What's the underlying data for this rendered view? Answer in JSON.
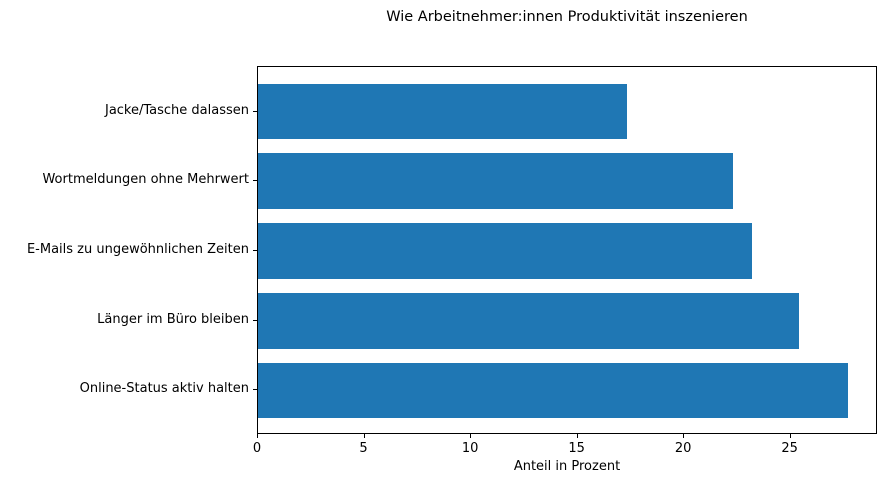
{
  "chart_data": {
    "type": "bar",
    "orientation": "horizontal",
    "title": "Wie Arbeitnehmer:innen Produktivität inszenieren",
    "xlabel": "Anteil in Prozent",
    "ylabel": "",
    "categories": [
      "Jacke/Tasche dalassen",
      "Wortmeldungen ohne Mehrwert",
      "E-Mails zu ungewöhnlichen Zeiten",
      "Länger im Büro bleiben",
      "Online-Status aktiv halten"
    ],
    "values": [
      17.3,
      22.3,
      23.2,
      25.4,
      27.7
    ],
    "categories_order": "top-to-bottom",
    "xlim": [
      0,
      29.1
    ],
    "xticks": [
      0,
      5,
      10,
      15,
      20,
      25
    ],
    "bar_color": "#1f77b4",
    "grid": false,
    "legend": null
  }
}
